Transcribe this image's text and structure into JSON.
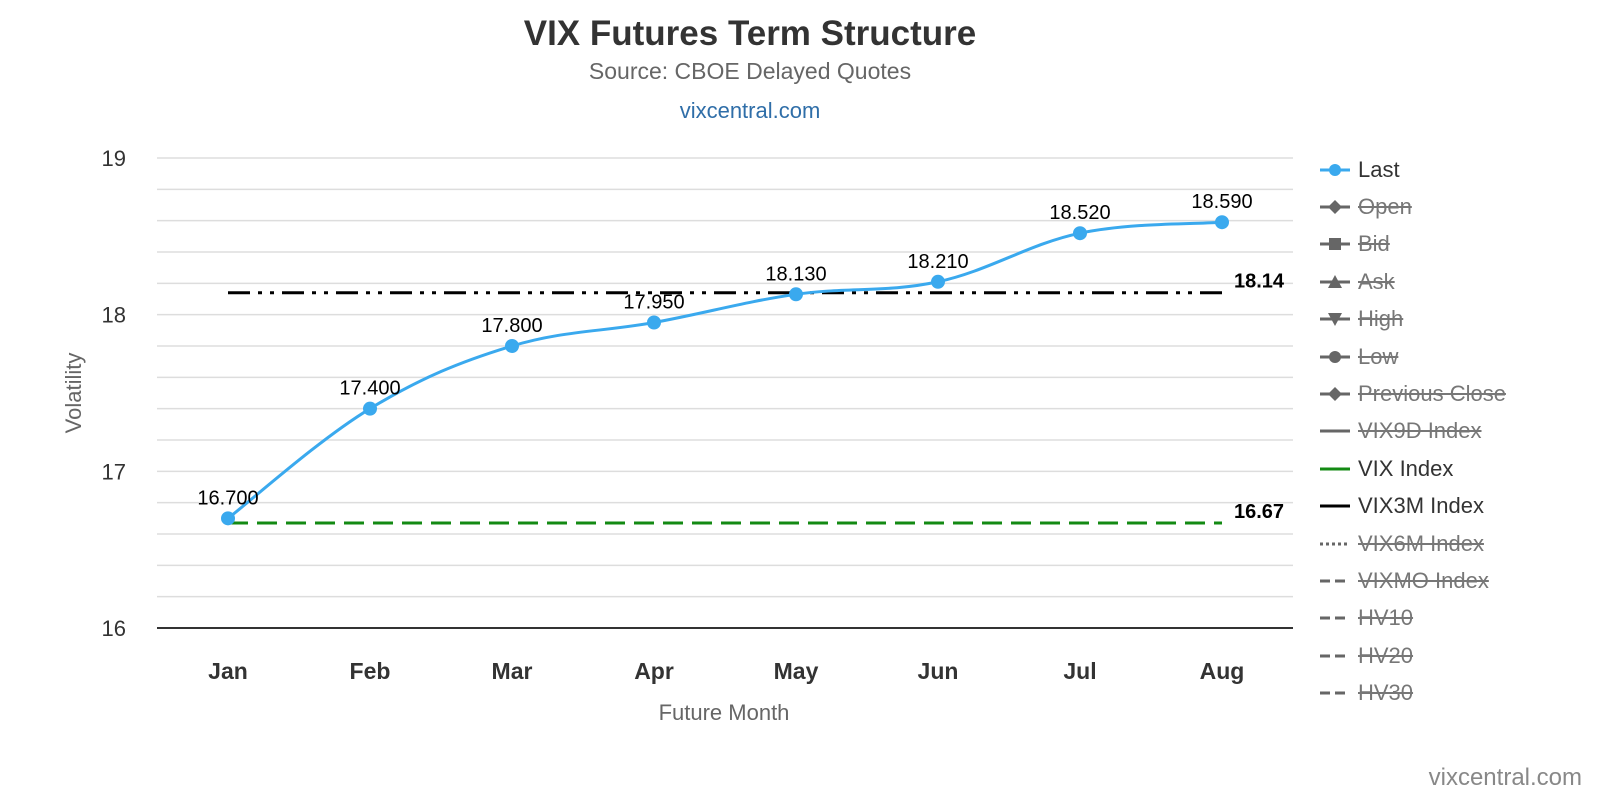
{
  "header": {
    "title": "VIX Futures Term Structure",
    "subtitle": "Source: CBOE Delayed Quotes",
    "link": "vixcentral.com"
  },
  "credit": "vixcentral.com",
  "chart_data": {
    "type": "line",
    "xlabel": "Future Month",
    "ylabel": "Volatility",
    "categories": [
      "Jan",
      "Feb",
      "Mar",
      "Apr",
      "May",
      "Jun",
      "Jul",
      "Aug"
    ],
    "ylim": [
      16,
      19
    ],
    "yticks": [
      "16",
      "17",
      "18",
      "19"
    ],
    "grid": true,
    "legend_position": "right",
    "series": [
      {
        "name": "Last",
        "values": [
          16.7,
          17.4,
          17.8,
          17.95,
          18.13,
          18.21,
          18.52,
          18.59
        ],
        "data_labels": [
          "16.700",
          "17.400",
          "17.800",
          "17.950",
          "18.130",
          "18.210",
          "18.520",
          "18.590"
        ],
        "color": "#3aa9ee",
        "visible": true
      }
    ],
    "reference_lines": [
      {
        "name": "VIX3M Index",
        "value": 18.14,
        "label": "18.14",
        "color": "#000000",
        "style": "dash-dot-dot"
      },
      {
        "name": "VIX Index",
        "value": 16.67,
        "label": "16.67",
        "color": "#138a13",
        "style": "long-dash"
      }
    ]
  },
  "legend": [
    {
      "label": "Last",
      "symbol": "line-circle",
      "color": "#3aa9ee",
      "hidden": false
    },
    {
      "label": "Open",
      "symbol": "line-diamond",
      "color": "#666666",
      "hidden": true
    },
    {
      "label": "Bid",
      "symbol": "line-square",
      "color": "#666666",
      "hidden": true
    },
    {
      "label": "Ask",
      "symbol": "line-triangle",
      "color": "#666666",
      "hidden": true
    },
    {
      "label": "High",
      "symbol": "line-triangle-down",
      "color": "#666666",
      "hidden": true
    },
    {
      "label": "Low",
      "symbol": "line-circle",
      "color": "#666666",
      "hidden": true
    },
    {
      "label": "Previous Close",
      "symbol": "line-diamond",
      "color": "#666666",
      "hidden": true
    },
    {
      "label": "VIX9D Index",
      "symbol": "line",
      "color": "#666666",
      "hidden": true
    },
    {
      "label": "VIX Index",
      "symbol": "line",
      "color": "#138a13",
      "hidden": false
    },
    {
      "label": "VIX3M Index",
      "symbol": "line",
      "color": "#000000",
      "hidden": false
    },
    {
      "label": "VIX6M Index",
      "symbol": "dotted",
      "color": "#666666",
      "hidden": true
    },
    {
      "label": "VIXMO Index",
      "symbol": "dashed",
      "color": "#666666",
      "hidden": true
    },
    {
      "label": "HV10",
      "symbol": "dashed",
      "color": "#666666",
      "hidden": true
    },
    {
      "label": "HV20",
      "symbol": "dashed",
      "color": "#666666",
      "hidden": true
    },
    {
      "label": "HV30",
      "symbol": "dashed",
      "color": "#666666",
      "hidden": true
    }
  ]
}
